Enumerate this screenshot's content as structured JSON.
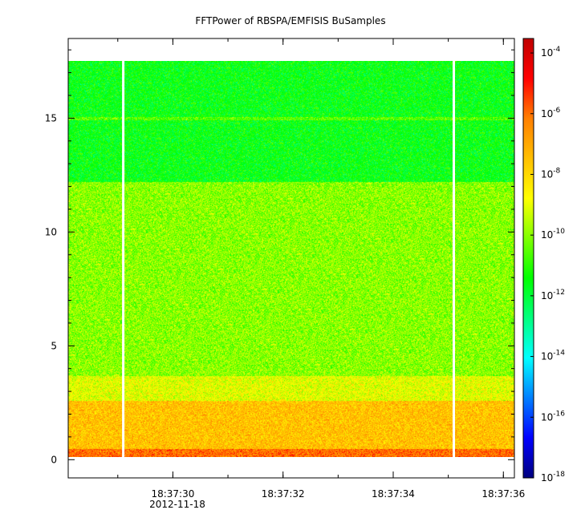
{
  "chart_data": {
    "type": "heatmap",
    "title": "FFTPower of RBSPA/EMFISIS  BuSamples",
    "xlabel": "",
    "ylabel": "",
    "x_axis": {
      "ticks": [
        "18:37:30",
        "18:37:32",
        "18:37:34",
        "18:37:36"
      ],
      "date_label": "2012-11-18",
      "range_seconds": [
        "18:37:28.1",
        "18:37:36.2"
      ]
    },
    "y_axis": {
      "ticks": [
        "0",
        "5",
        "10",
        "15"
      ],
      "range": [
        -0.8,
        18.5
      ],
      "data_extent": [
        0.1,
        17.5
      ]
    },
    "colorbar": {
      "scale": "log",
      "range": [
        1e-18,
        0.0003
      ],
      "ticks": [
        {
          "base": "10",
          "exp": "-4"
        },
        {
          "base": "10",
          "exp": "-6"
        },
        {
          "base": "10",
          "exp": "-8"
        },
        {
          "base": "10",
          "exp": "-10"
        },
        {
          "base": "10",
          "exp": "-12"
        },
        {
          "base": "10",
          "exp": "-14"
        },
        {
          "base": "10",
          "exp": "-16"
        },
        {
          "base": "10",
          "exp": "-18"
        }
      ],
      "colormap": [
        "#00007f",
        "#0000ff",
        "#007fff",
        "#00ffff",
        "#00ff7f",
        "#00ff00",
        "#7fff00",
        "#ffff00",
        "#ffbf00",
        "#ff7f00",
        "#ff0000",
        "#bf0000"
      ]
    },
    "bands": [
      {
        "from": 0.1,
        "to": 0.5,
        "power": 1e-06
      },
      {
        "from": 0.5,
        "to": 2.6,
        "power": 3e-08
      },
      {
        "from": 2.6,
        "to": 3.7,
        "power": 1e-09
      },
      {
        "from": 3.7,
        "to": 12.2,
        "power": 1e-10
      },
      {
        "from": 12.2,
        "to": 17.5,
        "power": 3e-12
      }
    ],
    "line_feature": {
      "frequency": 15.0,
      "power": 3e-11
    },
    "data_gaps_time": [
      "18:37:29.1",
      "18:37:35.1"
    ]
  }
}
